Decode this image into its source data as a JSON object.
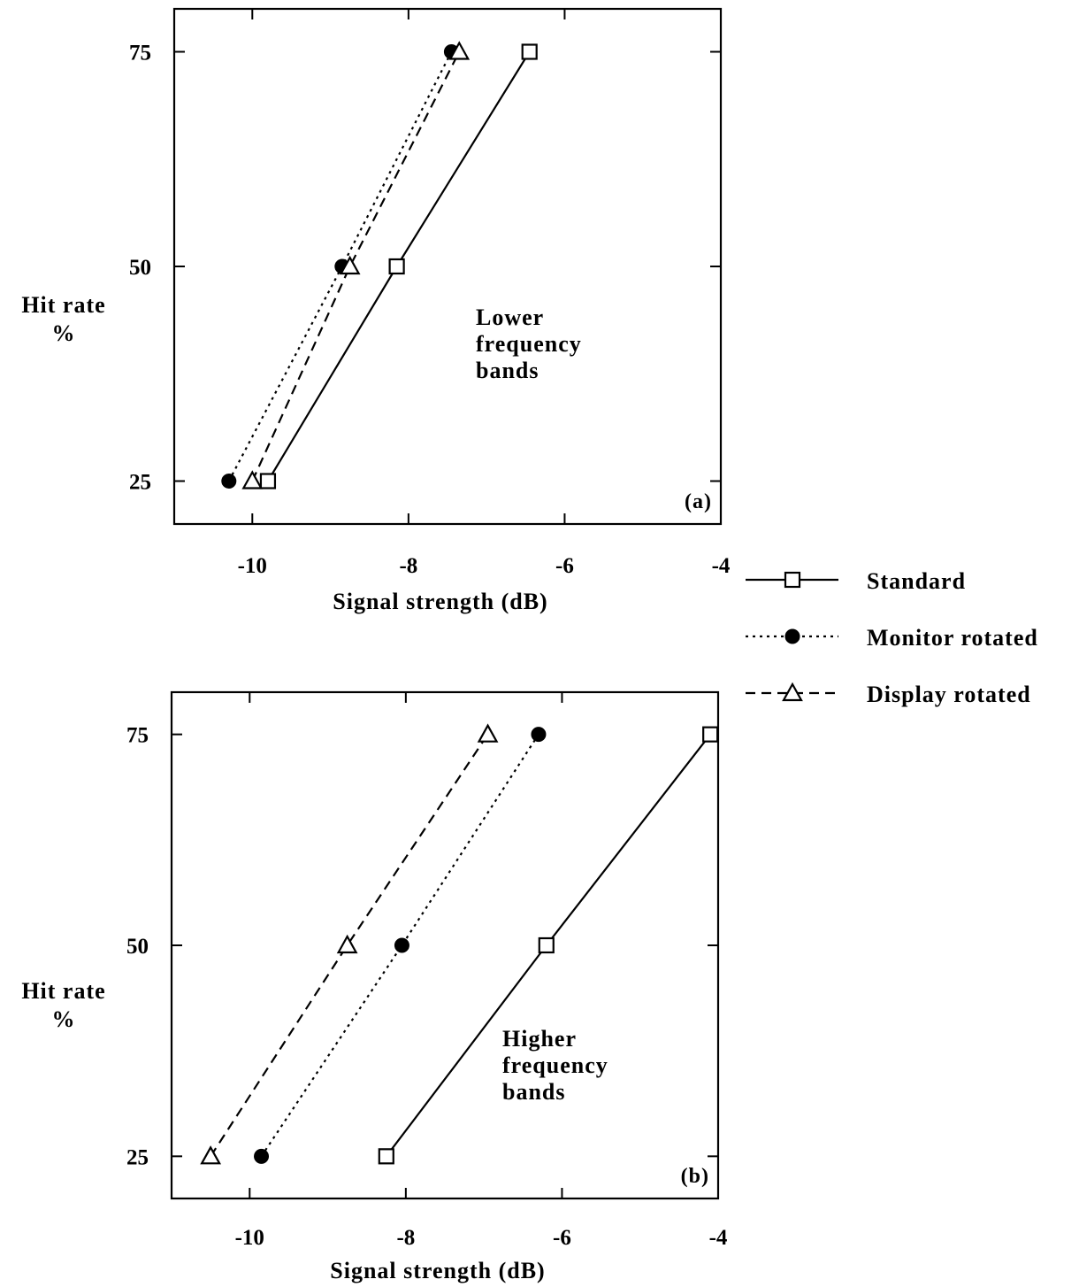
{
  "chart_data": [
    {
      "type": "line",
      "panel_label": "(a)",
      "annotation": [
        "Lower",
        "frequency",
        "bands"
      ],
      "xlabel": "Signal strength (dB)",
      "ylabel": [
        "Hit rate",
        "%"
      ],
      "xlim": [
        -11,
        -4
      ],
      "ylim": [
        20,
        80
      ],
      "xticks": [
        -10,
        -8,
        -6,
        -4
      ],
      "yticks": [
        25,
        50,
        75
      ],
      "series": [
        {
          "name": "Standard",
          "marker": "square",
          "dash": "solid",
          "x": [
            -9.8,
            -8.15,
            -6.45
          ],
          "y": [
            25,
            50,
            75
          ]
        },
        {
          "name": "Monitor rotated",
          "marker": "circle",
          "dash": "dotted",
          "x": [
            -10.3,
            -8.85,
            -7.45
          ],
          "y": [
            25,
            50,
            75
          ]
        },
        {
          "name": "Display rotated",
          "marker": "triangle",
          "dash": "dashed",
          "x": [
            -10.0,
            -8.75,
            -7.35
          ],
          "y": [
            25,
            50,
            75
          ]
        }
      ]
    },
    {
      "type": "line",
      "panel_label": "(b)",
      "annotation": [
        "Higher",
        "frequency",
        "bands"
      ],
      "xlabel": "Signal strength (dB)",
      "ylabel": [
        "Hit rate",
        "%"
      ],
      "xlim": [
        -11,
        -4
      ],
      "ylim": [
        20,
        80
      ],
      "xticks": [
        -10,
        -8,
        -6,
        -4
      ],
      "yticks": [
        25,
        50,
        75
      ],
      "series": [
        {
          "name": "Standard",
          "marker": "square",
          "dash": "solid",
          "x": [
            -8.25,
            -6.2,
            -4.1
          ],
          "y": [
            25,
            50,
            75
          ]
        },
        {
          "name": "Monitor rotated",
          "marker": "circle",
          "dash": "dotted",
          "x": [
            -9.85,
            -8.05,
            -6.3
          ],
          "y": [
            25,
            50,
            75
          ]
        },
        {
          "name": "Display rotated",
          "marker": "triangle",
          "dash": "dashed",
          "x": [
            -10.5,
            -8.75,
            -6.95
          ],
          "y": [
            25,
            50,
            75
          ]
        }
      ]
    }
  ],
  "legend": {
    "placement": "right",
    "items": [
      {
        "label": "Standard",
        "marker": "square",
        "dash": "solid"
      },
      {
        "label": "Monitor rotated",
        "marker": "circle",
        "dash": "dotted"
      },
      {
        "label": "Display rotated",
        "marker": "triangle",
        "dash": "dashed"
      }
    ]
  },
  "colors": {
    "ink": "#000000",
    "background": "#ffffff"
  }
}
